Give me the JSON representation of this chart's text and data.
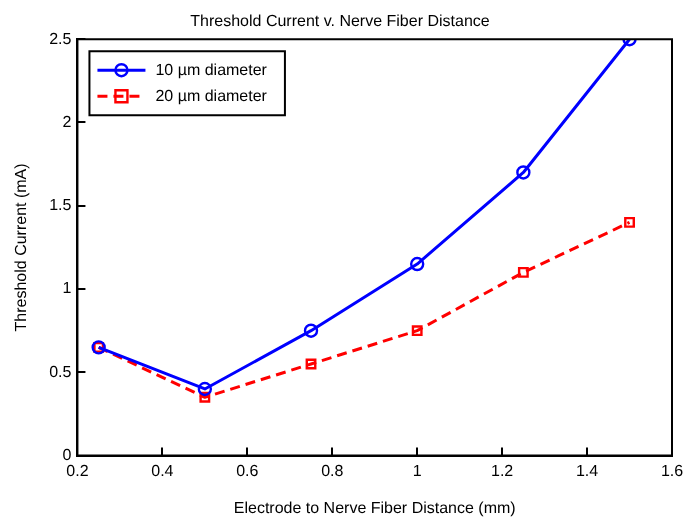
{
  "chart_data": {
    "type": "line",
    "title": "Threshold Current v. Nerve Fiber Distance",
    "xlabel": "Electrode to Nerve Fiber Distance (mm)",
    "ylabel": "Threshold Current (mA)",
    "x": [
      0.25,
      0.5,
      0.75,
      1,
      1.25,
      1.5
    ],
    "series": [
      {
        "name": "10 µm diameter",
        "color": "#0000ff",
        "marker": "circle",
        "line_style": "solid",
        "values": [
          0.65,
          0.4,
          0.75,
          1.15,
          1.7,
          2.5
        ]
      },
      {
        "name": "20 µm diameter",
        "color": "#ff0000",
        "marker": "square",
        "line_style": "dashed",
        "values": [
          0.65,
          0.35,
          0.55,
          0.75,
          1.1,
          1.4
        ]
      }
    ],
    "xlim": [
      0.2,
      1.6
    ],
    "xticks": [
      0.2,
      0.4,
      0.6,
      0.8,
      1,
      1.2,
      1.4,
      1.6
    ],
    "ylim": [
      0,
      2.5
    ],
    "yticks": [
      0,
      0.5,
      1,
      1.5,
      2,
      2.5
    ],
    "grid": false,
    "legend": "top left"
  }
}
